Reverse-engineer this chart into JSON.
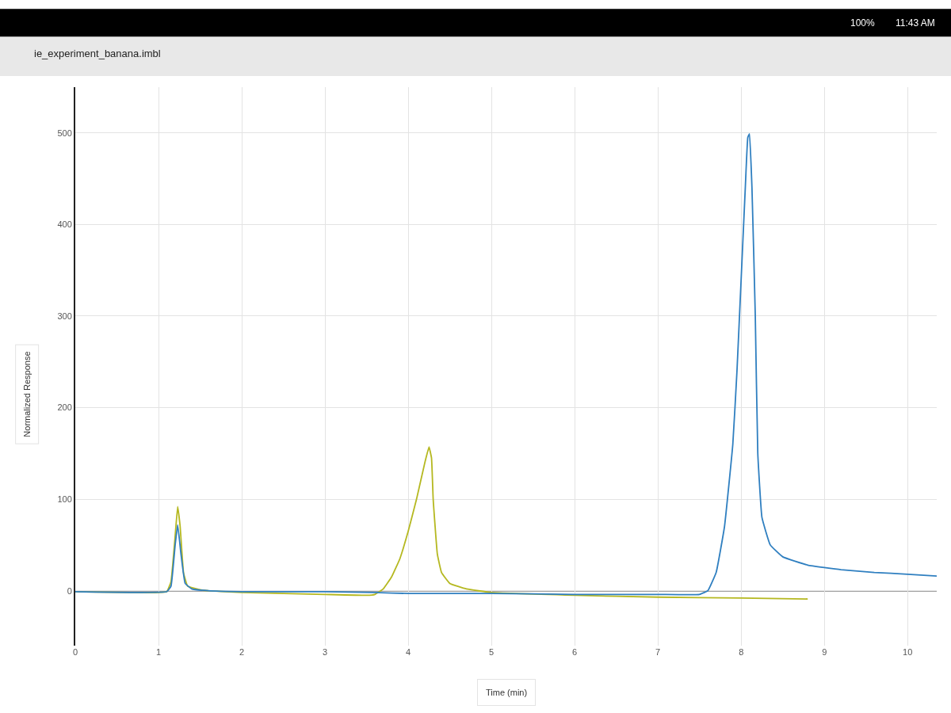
{
  "chart_data": {
    "type": "line",
    "title": "ie_experiment_banana.imbl",
    "xlabel": "Time (min)",
    "ylabel": "Normalized Response",
    "annotations": [
      "100%",
      "11:43 AM"
    ],
    "series": [
      {
        "color": "#b5b820",
        "x": [
          0,
          1.0,
          1.1,
          1.15,
          1.2,
          1.23,
          1.26,
          1.3,
          1.35,
          1.5,
          1.6,
          2,
          3,
          3.5,
          3.6,
          3.7,
          3.8,
          3.9,
          4.0,
          4.1,
          4.2,
          4.25,
          4.28,
          4.3,
          4.35,
          4.4,
          4.5,
          4.7,
          5,
          6,
          7,
          8,
          8.8
        ],
        "values": [
          -1,
          -2,
          -1,
          10,
          60,
          92,
          70,
          20,
          5,
          1,
          0,
          -2,
          -4,
          -5,
          -4,
          2,
          15,
          35,
          65,
          100,
          140,
          157,
          145,
          100,
          40,
          20,
          8,
          2,
          -2,
          -5,
          -7,
          -8,
          -9
        ]
      },
      {
        "color": "#2f7fc0",
        "x": [
          0,
          1.1,
          1.15,
          1.2,
          1.23,
          1.27,
          1.32,
          1.4,
          1.6,
          2,
          3,
          3.6,
          4,
          5,
          6,
          7,
          7.5,
          7.6,
          7.7,
          7.8,
          7.9,
          7.95,
          8.0,
          8.05,
          8.08,
          8.1,
          8.13,
          8.17,
          8.2,
          8.25,
          8.35,
          8.5,
          8.8,
          9.2,
          9.6,
          10.0,
          10.35
        ],
        "values": [
          -1,
          -1,
          5,
          50,
          72,
          40,
          8,
          2,
          0,
          -1,
          -1,
          -2,
          -3,
          -3,
          -4,
          -4,
          -4,
          0,
          20,
          70,
          160,
          240,
          340,
          440,
          495,
          499,
          440,
          300,
          150,
          80,
          50,
          37,
          28,
          23,
          20,
          18,
          16
        ]
      }
    ],
    "xlim": [
      0,
      10.35
    ],
    "xticks": [
      0,
      1,
      2,
      3,
      4,
      5,
      6,
      7,
      8,
      9,
      10
    ],
    "ylim": [
      -60,
      550
    ],
    "yticks": [
      0,
      100,
      200,
      300,
      400,
      500
    ],
    "ref_lines": [
      {
        "axis": "y",
        "value": 0,
        "color": "#444444"
      }
    ],
    "grid": true,
    "marker": "none",
    "line_style": "solid"
  }
}
